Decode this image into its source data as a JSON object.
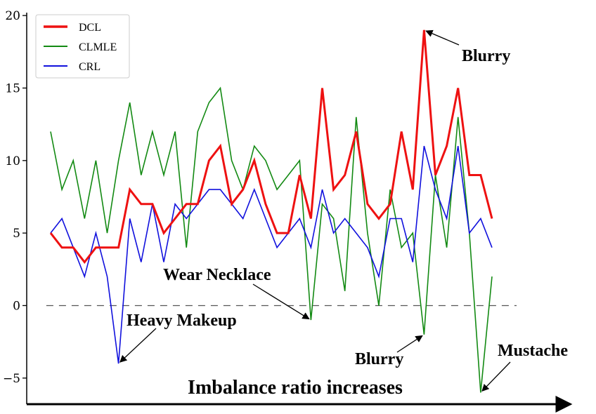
{
  "chart_data": {
    "type": "line",
    "title": "",
    "xlabel": "Imbalance ratio increases",
    "ylabel": "",
    "ylim": [
      -6.8,
      20.2
    ],
    "xlim": [
      -1,
      40
    ],
    "yticks": [
      -5,
      0,
      5,
      10,
      15,
      20
    ],
    "ytick_labels": [
      "−5",
      "0",
      "5",
      "10",
      "15",
      "20"
    ],
    "grid": false,
    "legend_position": "top-left",
    "reference_line": {
      "y": 0,
      "style": "dashed",
      "color": "#555555"
    },
    "x": [
      0,
      1,
      2,
      3,
      4,
      5,
      6,
      7,
      8,
      9,
      10,
      11,
      12,
      13,
      14,
      15,
      16,
      17,
      18,
      19,
      20,
      21,
      22,
      23,
      24,
      25,
      26,
      27,
      28,
      29,
      30,
      31,
      32,
      33,
      34,
      35,
      36,
      37,
      38,
      39
    ],
    "series": [
      {
        "name": "DCL",
        "color": "#ee1111",
        "width": 3,
        "values": [
          5,
          4,
          4,
          3,
          4,
          4,
          4,
          8,
          7,
          7,
          5,
          6,
          7,
          7,
          10,
          11,
          7,
          8,
          10,
          7,
          5,
          5,
          9,
          6,
          15,
          8,
          9,
          12,
          7,
          6,
          7,
          12,
          8,
          19,
          9,
          11,
          15,
          9,
          9,
          6
        ]
      },
      {
        "name": "CLMLE",
        "color": "#138a13",
        "width": 1.6,
        "values": [
          12,
          8,
          10,
          6,
          10,
          5,
          10,
          14,
          9,
          12,
          9,
          12,
          4,
          12,
          14,
          15,
          10,
          8,
          11,
          10,
          8,
          9,
          10,
          -1,
          7,
          6,
          1,
          13,
          5,
          0,
          8,
          4,
          5,
          -2,
          9,
          4,
          13,
          5,
          -6,
          2
        ]
      },
      {
        "name": "CRL",
        "color": "#1111dd",
        "width": 1.6,
        "values": [
          5,
          6,
          4,
          2,
          5,
          2,
          -4,
          6,
          3,
          7,
          3,
          7,
          6,
          7,
          8,
          8,
          7,
          6,
          8,
          6,
          4,
          5,
          6,
          4,
          8,
          5,
          6,
          5,
          4,
          2,
          6,
          6,
          3,
          11,
          8,
          6,
          11,
          5,
          6,
          4
        ]
      }
    ],
    "annotations": [
      {
        "text": "Blurry",
        "point": [
          33,
          19
        ]
      },
      {
        "text": "Heavy Makeup",
        "point": [
          6,
          -4
        ]
      },
      {
        "text": "Wear Necklace",
        "point": [
          23,
          -1
        ]
      },
      {
        "text": "Blurry",
        "point": [
          33,
          -2
        ]
      },
      {
        "text": "Mustache",
        "point": [
          38,
          -6
        ]
      }
    ]
  }
}
